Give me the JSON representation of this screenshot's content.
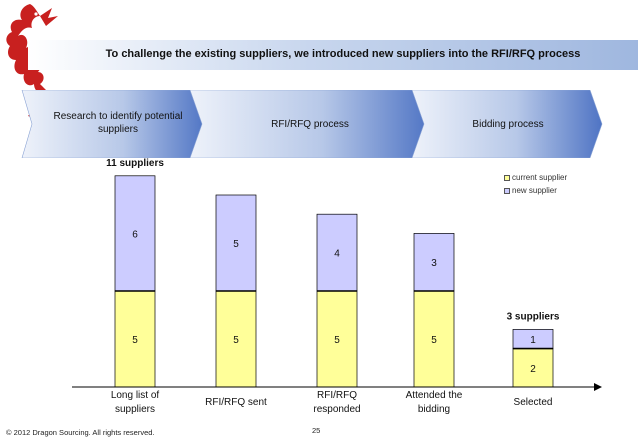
{
  "slide": {
    "title": "To challenge the existing suppliers, we introduced new suppliers into the RFI/RFQ process",
    "footer": "© 2012 Dragon Sourcing. All rights reserved.",
    "page_number": "25"
  },
  "phases": [
    {
      "label": "Research to identify potential suppliers"
    },
    {
      "label": "RFI/RFQ process"
    },
    {
      "label": "Bidding process"
    }
  ],
  "colors": {
    "current_supplier": "#ffff99",
    "new_supplier": "#ccccff",
    "bar_border": "#000000",
    "phase_arrow_light": "#dfe7f5",
    "phase_arrow_dark": "#4f74c4",
    "brand_red": "#c8201f"
  },
  "chart_data": {
    "type": "bar",
    "stacked": true,
    "categories": [
      "Long list of suppliers",
      "RFI/RFQ sent",
      "RFI/RFQ responded",
      "Attended the bidding",
      "Selected"
    ],
    "series": [
      {
        "name": "current supplier",
        "values": [
          5,
          5,
          5,
          5,
          2
        ]
      },
      {
        "name": "new supplier",
        "values": [
          6,
          5,
          4,
          3,
          1
        ]
      }
    ],
    "total_labels": [
      {
        "category": "Long list of suppliers",
        "text": "11 suppliers"
      },
      {
        "category": "Selected",
        "text": "3 suppliers"
      }
    ],
    "legend": {
      "position": "top-right",
      "entries": [
        "current supplier",
        "new supplier"
      ]
    },
    "ylim": [
      0,
      11
    ],
    "grid": false,
    "xlabel": "",
    "ylabel": ""
  }
}
